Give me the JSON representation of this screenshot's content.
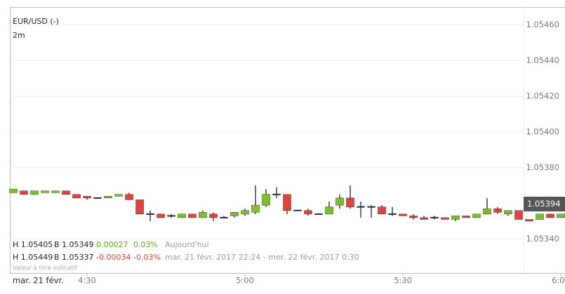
{
  "chart_data": {
    "type": "candlestick",
    "title": "EUR/USD (-)",
    "interval": "2m",
    "date_label": "mar. 21 févr.",
    "last_price_label": "1.05394",
    "up_color": "#7bc025",
    "down_color": "#e2423f",
    "wick_color": "#222222",
    "grid": true,
    "x": [
      16,
      18,
      20,
      22,
      24,
      26,
      28,
      30,
      32,
      34,
      36,
      38,
      40,
      42,
      44,
      46,
      48,
      50,
      52,
      54,
      56,
      58,
      60,
      62,
      64,
      66,
      68,
      70,
      72,
      74,
      76,
      78,
      80,
      82,
      84,
      86,
      88,
      90,
      92,
      94,
      96,
      98,
      100,
      102,
      104,
      106,
      108,
      110,
      112,
      114,
      116,
      118,
      120
    ],
    "open": [
      1.05366,
      1.05367,
      1.05365,
      1.05366,
      1.05366,
      1.05367,
      1.05365,
      1.05364,
      1.05363,
      1.05363,
      1.05364,
      1.05365,
      1.05362,
      1.05354,
      1.05354,
      1.05353,
      1.05352,
      1.05354,
      1.05352,
      1.05354,
      1.05352,
      1.05353,
      1.05354,
      1.05355,
      1.05359,
      1.05365,
      1.05365,
      1.05356,
      1.05356,
      1.05354,
      1.05354,
      1.05359,
      1.05363,
      1.05358,
      1.05358,
      1.05358,
      1.05354,
      1.05354,
      1.05353,
      1.05352,
      1.05352,
      1.05352,
      1.05351,
      1.05353,
      1.05352,
      1.05354,
      1.05357,
      1.05354,
      1.05356,
      1.05351,
      1.05351,
      1.05354,
      1.05352
    ],
    "high": [
      1.05368,
      1.05367,
      1.05367,
      1.05367,
      1.05367,
      1.05367,
      1.05365,
      1.05364,
      1.05363,
      1.05364,
      1.05365,
      1.05366,
      1.05362,
      1.05356,
      1.05354,
      1.05354,
      1.05354,
      1.05354,
      1.05356,
      1.05355,
      1.05353,
      1.05355,
      1.05357,
      1.0537,
      1.05368,
      1.05369,
      1.05365,
      1.05356,
      1.05357,
      1.05354,
      1.05361,
      1.05365,
      1.0537,
      1.05361,
      1.05359,
      1.05359,
      1.05358,
      1.05354,
      1.05354,
      1.05353,
      1.05353,
      1.05352,
      1.05353,
      1.05353,
      1.05354,
      1.05363,
      1.05358,
      1.05356,
      1.05356,
      1.05351,
      1.05354,
      1.05354,
      1.05354
    ],
    "low": [
      1.05366,
      1.05365,
      1.05365,
      1.05366,
      1.05366,
      1.05365,
      1.05363,
      1.05362,
      1.05363,
      1.05363,
      1.05364,
      1.05362,
      1.05354,
      1.0535,
      1.05352,
      1.05352,
      1.05352,
      1.05352,
      1.05352,
      1.0535,
      1.05352,
      1.05352,
      1.05353,
      1.05354,
      1.05358,
      1.05363,
      1.05354,
      1.05356,
      1.05353,
      1.05354,
      1.05354,
      1.05357,
      1.05357,
      1.05352,
      1.05352,
      1.05354,
      1.05353,
      1.05353,
      1.05351,
      1.05351,
      1.05351,
      1.05351,
      1.0535,
      1.05352,
      1.05352,
      1.05354,
      1.05354,
      1.05353,
      1.05351,
      1.0535,
      1.05351,
      1.05352,
      1.05352
    ],
    "close": [
      1.05368,
      1.05365,
      1.05367,
      1.05367,
      1.05367,
      1.05365,
      1.05363,
      1.05363,
      1.05363,
      1.05364,
      1.05365,
      1.05362,
      1.05354,
      1.05354,
      1.05352,
      1.05353,
      1.05354,
      1.05352,
      1.05355,
      1.05352,
      1.05352,
      1.05355,
      1.05356,
      1.05359,
      1.05365,
      1.05365,
      1.05356,
      1.05356,
      1.05354,
      1.05354,
      1.05358,
      1.05363,
      1.05358,
      1.05358,
      1.05358,
      1.05354,
      1.05354,
      1.05353,
      1.05352,
      1.05351,
      1.05352,
      1.05351,
      1.05353,
      1.05352,
      1.05354,
      1.05357,
      1.05355,
      1.05356,
      1.05351,
      1.0535,
      1.05354,
      1.05352,
      1.05354
    ],
    "xlim": [
      15.33,
      120.8
    ],
    "ylim": [
      1.05321,
      1.0547
    ],
    "xticks": [
      {
        "value": 30,
        "label": "4:30"
      },
      {
        "value": 60,
        "label": "5:00"
      },
      {
        "value": 90,
        "label": "5:30"
      },
      {
        "value": 120,
        "label": "6:00"
      }
    ],
    "yticks": [
      {
        "value": 1.0546,
        "label": "1.05460"
      },
      {
        "value": 1.0544,
        "label": "1.05440"
      },
      {
        "value": 1.0542,
        "label": "1.05420"
      },
      {
        "value": 1.054,
        "label": "1.05400"
      },
      {
        "value": 1.0538,
        "label": "1.05380"
      },
      {
        "value": 1.0534,
        "label": "1.05340"
      }
    ]
  },
  "info": {
    "rows": [
      [
        "H 1.05405",
        "B 1.05349",
        "0.00027",
        "0.03%",
        "Aujourd'hui"
      ],
      [
        "H 1.05449",
        "B 1.05337",
        "-0.00034",
        "-0.03%",
        "mar. 21 févr. 2017 22:24 - mer. 22 févr. 2017 0:30"
      ]
    ],
    "disclaimer": "Valeur à titre indicatif"
  }
}
